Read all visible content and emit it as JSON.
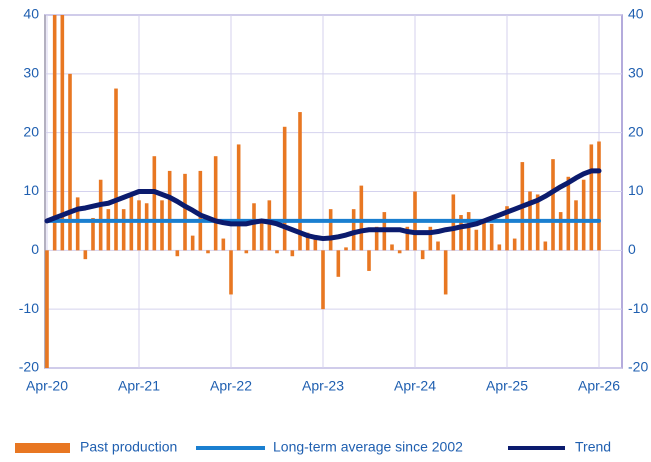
{
  "chart_data": {
    "type": "bar",
    "categories": [
      "Apr-20",
      null,
      null,
      null,
      null,
      null,
      null,
      null,
      null,
      null,
      null,
      null,
      "Apr-21",
      null,
      null,
      null,
      null,
      null,
      null,
      null,
      null,
      null,
      null,
      null,
      "Apr-22",
      null,
      null,
      null,
      null,
      null,
      null,
      null,
      null,
      null,
      null,
      null,
      "Apr-23",
      null,
      null,
      null,
      null,
      null,
      null,
      null,
      null,
      null,
      null,
      null,
      "Apr-24",
      null,
      null,
      null,
      null,
      null,
      null,
      null,
      null,
      null,
      null,
      null,
      "Apr-25",
      null,
      null,
      null,
      null,
      null,
      null,
      null,
      null,
      null,
      null,
      null,
      "Apr-26"
    ],
    "series": [
      {
        "name": "Past production",
        "type": "bar",
        "color": "#e87722",
        "values": [
          -20,
          40,
          40,
          30,
          9,
          -1.5,
          5.5,
          12,
          7,
          27.5,
          7,
          9.5,
          8.5,
          8,
          16,
          8.5,
          13.5,
          -1,
          13,
          2.5,
          13.5,
          -0.5,
          16,
          2,
          -7.5,
          18,
          -0.5,
          8,
          5,
          8.5,
          -0.5,
          21,
          -1,
          23.5,
          3,
          2,
          -10,
          7,
          -4.5,
          0.5,
          7,
          11,
          -3.5,
          4,
          6.5,
          1,
          -0.5,
          4,
          10,
          -1.5,
          4,
          1.5,
          -7.5,
          9.5,
          6,
          6.5,
          3.5,
          5,
          4.5,
          1,
          7.5,
          2,
          15,
          10,
          9.5,
          1.5,
          15.5,
          6.5,
          12.5,
          8.5,
          12,
          18,
          18.5
        ]
      },
      {
        "name": "Long-term average since 2002",
        "type": "line",
        "color": "#1a7fd0",
        "values": [
          5,
          5,
          5,
          5,
          5,
          5,
          5,
          5,
          5,
          5,
          5,
          5,
          5,
          5,
          5,
          5,
          5,
          5,
          5,
          5,
          5,
          5,
          5,
          5,
          5,
          5,
          5,
          5,
          5,
          5,
          5,
          5,
          5,
          5,
          5,
          5,
          5,
          5,
          5,
          5,
          5,
          5,
          5,
          5,
          5,
          5,
          5,
          5,
          5,
          5,
          5,
          5,
          5,
          5,
          5,
          5,
          5,
          5,
          5,
          5,
          5,
          5,
          5,
          5,
          5,
          5,
          5,
          5,
          5,
          5,
          5,
          5,
          5
        ]
      },
      {
        "name": "Trend",
        "type": "line",
        "color": "#0b1b6e",
        "values": [
          5,
          5.5,
          6,
          6.5,
          7,
          7.2,
          7.5,
          7.8,
          8,
          8.5,
          9,
          9.5,
          10,
          10,
          10,
          9.5,
          9,
          8.3,
          7.5,
          6.8,
          6,
          5.5,
          5,
          4.7,
          4.5,
          4.5,
          4.5,
          4.8,
          5,
          4.8,
          4.5,
          4,
          3.5,
          3,
          2.5,
          2.2,
          2,
          2.1,
          2.3,
          2.6,
          3,
          3.3,
          3.5,
          3.5,
          3.5,
          3.5,
          3.5,
          3.2,
          3,
          3,
          3,
          3.2,
          3.5,
          3.7,
          4,
          4.2,
          4.5,
          5,
          5.5,
          6,
          6.5,
          7,
          7.5,
          8,
          8.5,
          9.2,
          10,
          10.8,
          11.5,
          12.3,
          13,
          13.5,
          13.5
        ]
      }
    ],
    "ylim": [
      -20,
      40
    ],
    "yticks": [
      -20,
      -10,
      0,
      10,
      20,
      30,
      40
    ],
    "y2lim": [
      -20,
      40
    ],
    "y2ticks": [
      -20,
      -10,
      0,
      10,
      20,
      30,
      40
    ],
    "grid": true,
    "legend": "bottom"
  }
}
